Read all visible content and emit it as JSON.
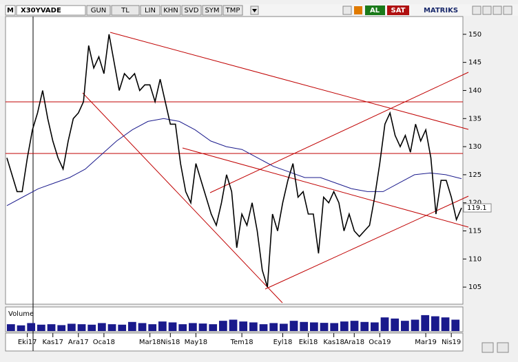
{
  "toolbar": {
    "logo": "M",
    "symbol": "X30YVADE",
    "buttons": [
      "GUN",
      "TL",
      "LIN",
      "KHN",
      "SVD",
      "SYM",
      "TMP"
    ],
    "buy": "AL",
    "sell": "SAT",
    "brand": "MATRIKS"
  },
  "chart_data": {
    "type": "line",
    "series": [
      {
        "name": "X30YVADE",
        "color": "#000000",
        "values": [
          128,
          125,
          122,
          122,
          128,
          133,
          136,
          140,
          135,
          131,
          128,
          126,
          131,
          135,
          136,
          138,
          148,
          144,
          146,
          143,
          150,
          145,
          140,
          143,
          142,
          143,
          140,
          141,
          141,
          138,
          142,
          138,
          134,
          134,
          127,
          122,
          120,
          127,
          124,
          121,
          118,
          116,
          120,
          125,
          122,
          112,
          118,
          116,
          120,
          115,
          108,
          105,
          118,
          115,
          120,
          124,
          127,
          121,
          122,
          118,
          118,
          111,
          121,
          120,
          122,
          120,
          115,
          118,
          115,
          114,
          115,
          116,
          121,
          127,
          134,
          136,
          132,
          130,
          132,
          129,
          134,
          131,
          133,
          128,
          118,
          124,
          124,
          121,
          117,
          119.1
        ]
      },
      {
        "name": "MA",
        "color": "#1a1a8c",
        "values": [
          119.5,
          121,
          122.5,
          123.5,
          124.5,
          126,
          128.5,
          131,
          133,
          134.5,
          135,
          134.5,
          133,
          131,
          130,
          129.5,
          128,
          126.5,
          125.5,
          124.5,
          124.5,
          123.5,
          122.5,
          122,
          122,
          123.5,
          125,
          125.3,
          125,
          124.3
        ]
      }
    ],
    "ylim": [
      102.2,
      153.9
    ],
    "yticks": [
      105,
      110,
      115,
      120,
      125,
      130,
      135,
      140,
      145,
      150
    ],
    "last_label": 119.1,
    "xlim": [
      0,
      89
    ],
    "xticks": [
      {
        "value": 4,
        "label": "Eki17"
      },
      {
        "value": 9,
        "label": "Kas17"
      },
      {
        "value": 14,
        "label": "Ara17"
      },
      {
        "value": 19,
        "label": "Oca18"
      },
      {
        "value": 28,
        "label": "Mar18"
      },
      {
        "value": 32,
        "label": "Nis18"
      },
      {
        "value": 37,
        "label": "May18"
      },
      {
        "value": 46,
        "label": "Tem18"
      },
      {
        "value": 54,
        "label": "Eyl18"
      },
      {
        "value": 59,
        "label": "Eki18"
      },
      {
        "value": 64,
        "label": "Kas18"
      },
      {
        "value": 68,
        "label": "Ara18"
      },
      {
        "value": 73,
        "label": "Oca19"
      },
      {
        "value": 82,
        "label": "Mar19"
      },
      {
        "value": 87,
        "label": "Nis19"
      }
    ],
    "volume": {
      "name": "Volume",
      "color": "#1a1a8c",
      "ylim": [
        0,
        1000000
      ],
      "values": [
        300000,
        250000,
        350000,
        280000,
        300000,
        260000,
        320000,
        300000,
        280000,
        350000,
        300000,
        280000,
        400000,
        350000,
        300000,
        420000,
        380000,
        300000,
        350000,
        330000,
        300000,
        450000,
        500000,
        420000,
        380000,
        300000,
        350000,
        320000,
        450000,
        400000,
        380000,
        360000,
        350000,
        420000,
        450000,
        400000,
        380000,
        600000,
        550000,
        450000,
        500000,
        700000,
        650000,
        600000,
        500000
      ]
    }
  }
}
